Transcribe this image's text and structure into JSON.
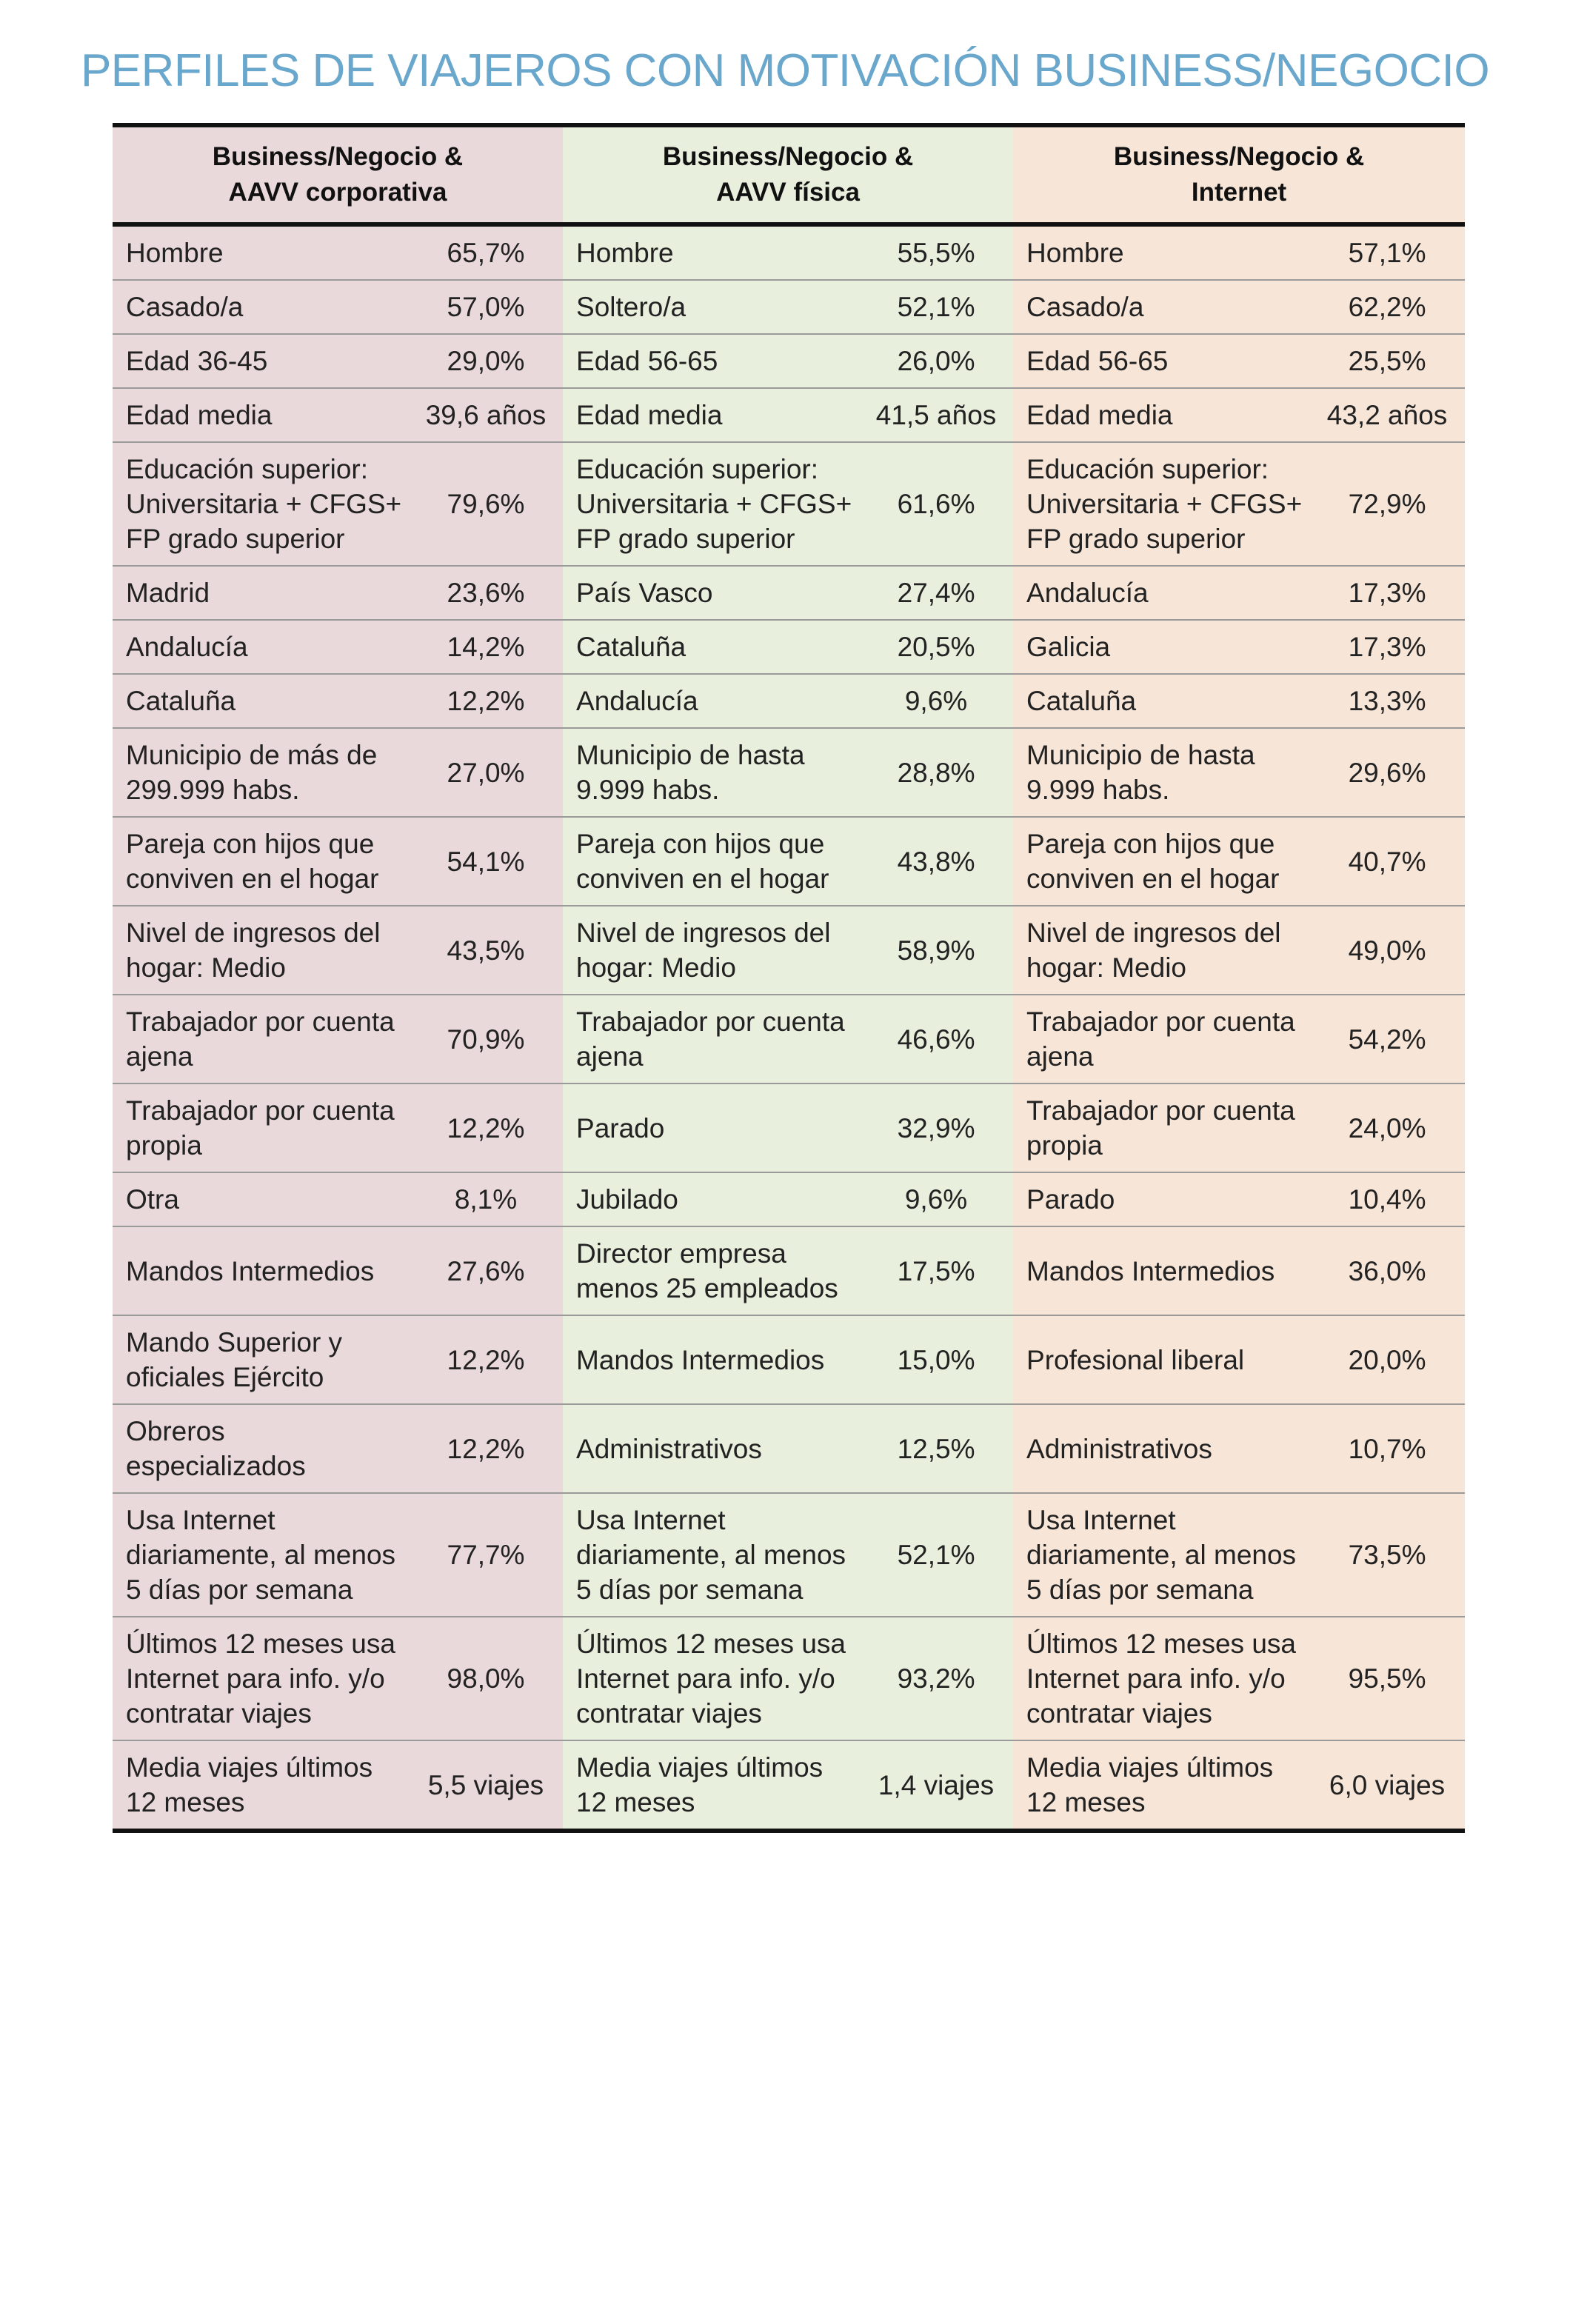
{
  "title": "PERFILES DE VIAJEROS CON MOTIVACIÓN BUSINESS/NEGOCIO",
  "colors": {
    "title": "#6aa7cc",
    "group1_bg": "#ead9da",
    "group2_bg": "#e9efdd",
    "group3_bg": "#f7e5d7"
  },
  "headers": [
    {
      "line1": "Business/Negocio &",
      "line2": "AAVV corporativa"
    },
    {
      "line1": "Business/Negocio &",
      "line2": "AAVV física"
    },
    {
      "line1": "Business/Negocio &",
      "line2": "Internet"
    }
  ],
  "rows": [
    [
      {
        "label": "Hombre",
        "value": "65,7%"
      },
      {
        "label": "Hombre",
        "value": "55,5%"
      },
      {
        "label": "Hombre",
        "value": "57,1%"
      }
    ],
    [
      {
        "label": "Casado/a",
        "value": "57,0%"
      },
      {
        "label": "Soltero/a",
        "value": "52,1%"
      },
      {
        "label": "Casado/a",
        "value": "62,2%"
      }
    ],
    [
      {
        "label": "Edad 36-45",
        "value": "29,0%"
      },
      {
        "label": "Edad 56-65",
        "value": "26,0%"
      },
      {
        "label": "Edad 56-65",
        "value": "25,5%"
      }
    ],
    [
      {
        "label": "Edad media",
        "value": "39,6 años"
      },
      {
        "label": "Edad media",
        "value": "41,5 años"
      },
      {
        "label": "Edad media",
        "value": "43,2 años"
      }
    ],
    [
      {
        "label": "Educación superior: Universitaria + CFGS+ FP grado superior",
        "value": "79,6%"
      },
      {
        "label": "Educación superior: Universitaria + CFGS+ FP grado superior",
        "value": "61,6%"
      },
      {
        "label": "Educación superior: Universitaria + CFGS+ FP grado superior",
        "value": "72,9%"
      }
    ],
    [
      {
        "label": "Madrid",
        "value": "23,6%"
      },
      {
        "label": "País Vasco",
        "value": "27,4%"
      },
      {
        "label": "Andalucía",
        "value": "17,3%"
      }
    ],
    [
      {
        "label": "Andalucía",
        "value": "14,2%"
      },
      {
        "label": "Cataluña",
        "value": "20,5%"
      },
      {
        "label": "Galicia",
        "value": "17,3%"
      }
    ],
    [
      {
        "label": "Cataluña",
        "value": "12,2%"
      },
      {
        "label": "Andalucía",
        "value": "9,6%"
      },
      {
        "label": "Cataluña",
        "value": "13,3%"
      }
    ],
    [
      {
        "label": "Municipio de más de 299.999 habs.",
        "value": "27,0%"
      },
      {
        "label": "Municipio de hasta 9.999 habs.",
        "value": "28,8%"
      },
      {
        "label": "Municipio de hasta 9.999 habs.",
        "value": "29,6%"
      }
    ],
    [
      {
        "label": "Pareja con hijos que conviven en el hogar",
        "value": "54,1%"
      },
      {
        "label": "Pareja con hijos que conviven en el hogar",
        "value": "43,8%"
      },
      {
        "label": "Pareja con hijos que conviven en el hogar",
        "value": "40,7%"
      }
    ],
    [
      {
        "label": "Nivel de ingresos del  hogar: Medio",
        "value": "43,5%"
      },
      {
        "label": "Nivel de ingresos del  hogar: Medio",
        "value": "58,9%"
      },
      {
        "label": "Nivel de ingresos del  hogar: Medio",
        "value": "49,0%"
      }
    ],
    [
      {
        "label": "Trabajador por cuenta ajena",
        "value": "70,9%"
      },
      {
        "label": "Trabajador por cuenta ajena",
        "value": "46,6%"
      },
      {
        "label": "Trabajador por cuenta ajena",
        "value": "54,2%"
      }
    ],
    [
      {
        "label": "Trabajador por cuenta propia",
        "value": "12,2%"
      },
      {
        "label": "Parado",
        "value": "32,9%"
      },
      {
        "label": "Trabajador por cuenta propia",
        "value": "24,0%"
      }
    ],
    [
      {
        "label": "Otra",
        "value": "8,1%"
      },
      {
        "label": "Jubilado",
        "value": "9,6%"
      },
      {
        "label": "Parado",
        "value": "10,4%"
      }
    ],
    [
      {
        "label": "Mandos Intermedios",
        "value": "27,6%"
      },
      {
        "label": "Director  empresa menos 25 empleados",
        "value": "17,5%"
      },
      {
        "label": "Mandos  Intermedios",
        "value": "36,0%"
      }
    ],
    [
      {
        "label": "Mando Superior y oficiales Ejército",
        "value": "12,2%"
      },
      {
        "label": "Mandos  Intermedios",
        "value": "15,0%"
      },
      {
        "label": "Profesional liberal",
        "value": "20,0%"
      }
    ],
    [
      {
        "label": "Obreros especializados",
        "value": "12,2%"
      },
      {
        "label": "Administrativos",
        "value": "12,5%"
      },
      {
        "label": "Administrativos",
        "value": "10,7%"
      }
    ],
    [
      {
        "label": "Usa Internet diariamente, al menos 5 días por semana",
        "value": "77,7%"
      },
      {
        "label": "Usa Internet diariamente, al menos 5 días por semana",
        "value": "52,1%"
      },
      {
        "label": "Usa Internet diariamente, al menos 5 días por semana",
        "value": "73,5%"
      }
    ],
    [
      {
        "label": "Últimos 12 meses usa Internet para info. y/o contratar viajes",
        "value": "98,0%"
      },
      {
        "label": "Últimos 12 meses usa Internet para info. y/o contratar viajes",
        "value": "93,2%"
      },
      {
        "label": "Últimos 12 meses usa Internet para info. y/o contratar viajes",
        "value": "95,5%"
      }
    ],
    [
      {
        "label": "Media viajes últimos 12 meses",
        "value": "5,5 viajes"
      },
      {
        "label": "Media viajes últimos 12 meses",
        "value": "1,4 viajes"
      },
      {
        "label": "Media viajes últimos 12 meses",
        "value": "6,0 viajes"
      }
    ]
  ]
}
